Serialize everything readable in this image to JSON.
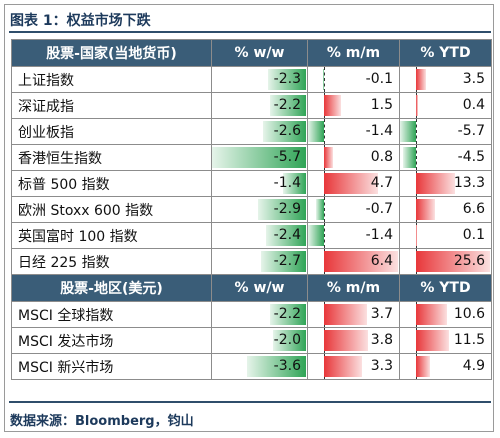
{
  "title": "图表 1：权益市场下跌",
  "source": "数据来源：Bloomberg，钧山",
  "chart_data": {
    "type": "table",
    "sections": [
      {
        "headers": [
          "股票-国家(当地货币)",
          "% w/w",
          "% m/m",
          "% YTD"
        ],
        "rows": [
          {
            "name": "上证指数",
            "ww": -2.3,
            "mm": -0.1,
            "ytd": 3.5
          },
          {
            "name": "深证成指",
            "ww": -2.2,
            "mm": 1.5,
            "ytd": 0.4
          },
          {
            "name": "创业板指",
            "ww": -2.6,
            "mm": -1.4,
            "ytd": -5.7
          },
          {
            "name": "香港恒生指数",
            "ww": -5.7,
            "mm": 0.8,
            "ytd": -4.5
          },
          {
            "name": "标普 500 指数",
            "ww": -1.4,
            "mm": 4.7,
            "ytd": 13.3
          },
          {
            "name": "欧洲 Stoxx 600 指数",
            "ww": -2.9,
            "mm": -0.7,
            "ytd": 6.6
          },
          {
            "name": "英国富时 100 指数",
            "ww": -2.4,
            "mm": -1.4,
            "ytd": 0.1
          },
          {
            "name": "日经 225 指数",
            "ww": -2.7,
            "mm": 6.4,
            "ytd": 25.6
          }
        ]
      },
      {
        "headers": [
          "股票-地区(美元)",
          "% w/w",
          "% m/m",
          "% YTD"
        ],
        "rows": [
          {
            "name": "MSCI 全球指数",
            "ww": -2.2,
            "mm": 3.7,
            "ytd": 10.6
          },
          {
            "name": "MSCI 发达市场",
            "ww": -2.0,
            "mm": 3.8,
            "ytd": 11.5
          },
          {
            "name": "MSCI 新兴市场",
            "ww": -3.6,
            "mm": 3.3,
            "ytd": 4.9
          }
        ]
      }
    ],
    "colors": {
      "negative": "#2fa456",
      "positive": "#e8373a",
      "header": "#3a5d78"
    }
  }
}
